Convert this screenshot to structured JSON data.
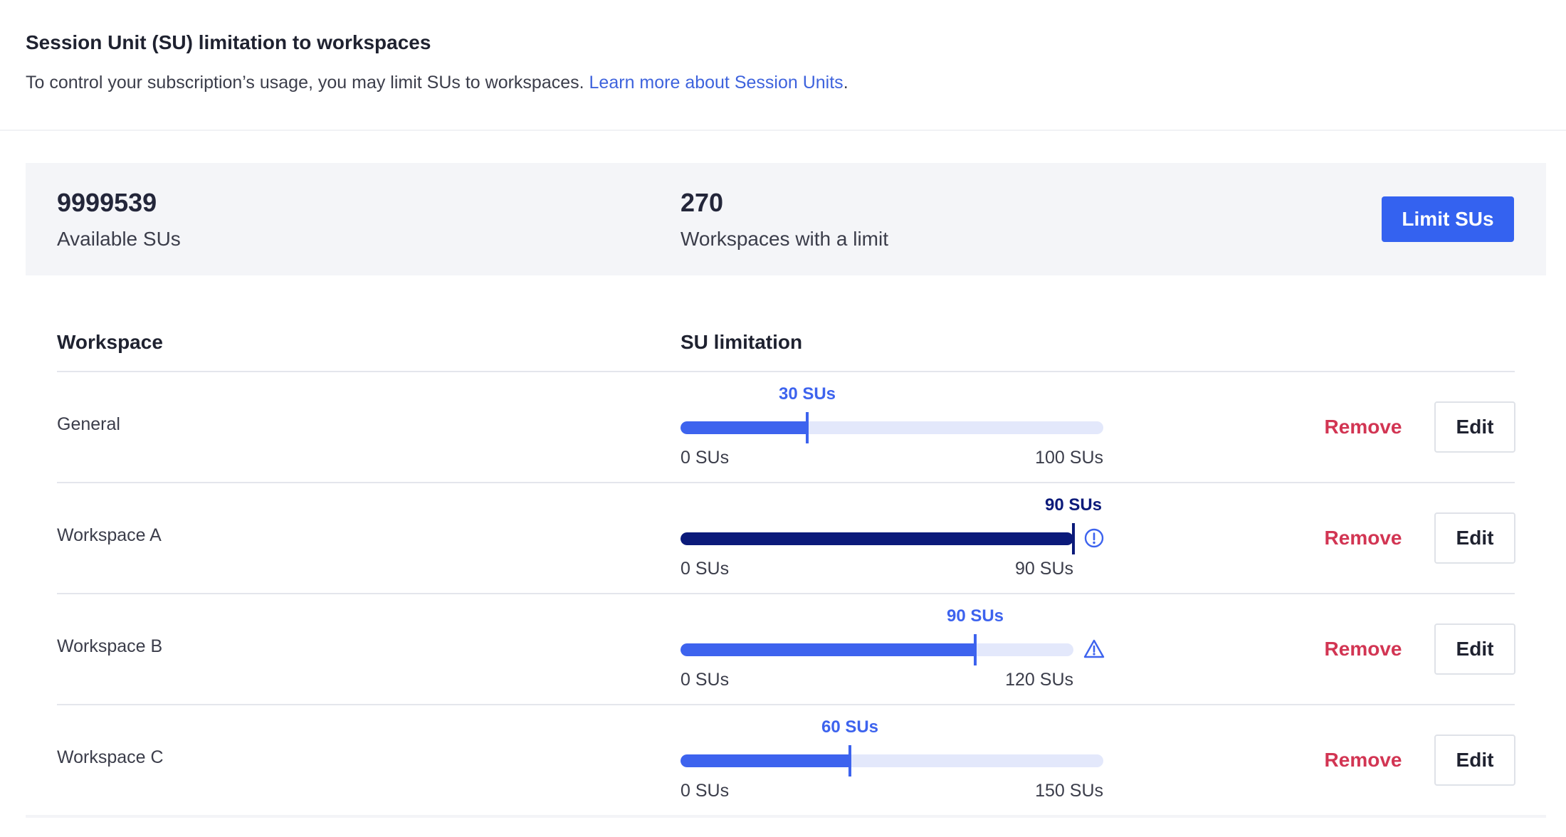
{
  "header": {
    "title": "Session Unit (SU) limitation to workspaces",
    "description": "To control your subscription’s usage, you may limit SUs to workspaces. ",
    "link_text": "Learn more about Session Units",
    "link_suffix": "."
  },
  "summary": {
    "available_value": "9999539",
    "available_label": "Available SUs",
    "workspaces_value": "270",
    "workspaces_label": "Workspaces with a limit",
    "limit_button": "Limit SUs"
  },
  "table": {
    "col_workspace": "Workspace",
    "col_limitation": "SU limitation",
    "remove_label": "Remove",
    "edit_label": "Edit",
    "rows": [
      {
        "name": "General",
        "value_label": "30 SUs",
        "min_label": "0 SUs",
        "max_label": "100 SUs",
        "value": 30,
        "max": 100,
        "status": "normal",
        "icon": null
      },
      {
        "name": "Workspace A",
        "value_label": "90 SUs",
        "min_label": "0 SUs",
        "max_label": "90 SUs",
        "value": 90,
        "max": 90,
        "status": "limit-reached",
        "icon": "info-circle-icon"
      },
      {
        "name": "Workspace B",
        "value_label": "90 SUs",
        "min_label": "0 SUs",
        "max_label": "120 SUs",
        "value": 90,
        "max": 120,
        "status": "warning",
        "icon": "warning-triangle-icon"
      },
      {
        "name": "Workspace C",
        "value_label": "60 SUs",
        "min_label": "0 SUs",
        "max_label": "150 SUs",
        "value": 60,
        "max": 150,
        "status": "normal",
        "icon": null
      }
    ]
  },
  "colors": {
    "primary": "#3462f0",
    "bar_fill": "#3d63ee",
    "bar_fill_dark": "#0b1a7a",
    "bar_track": "#e3e8fb",
    "remove_text": "#d23553",
    "link": "#3e63dd"
  }
}
